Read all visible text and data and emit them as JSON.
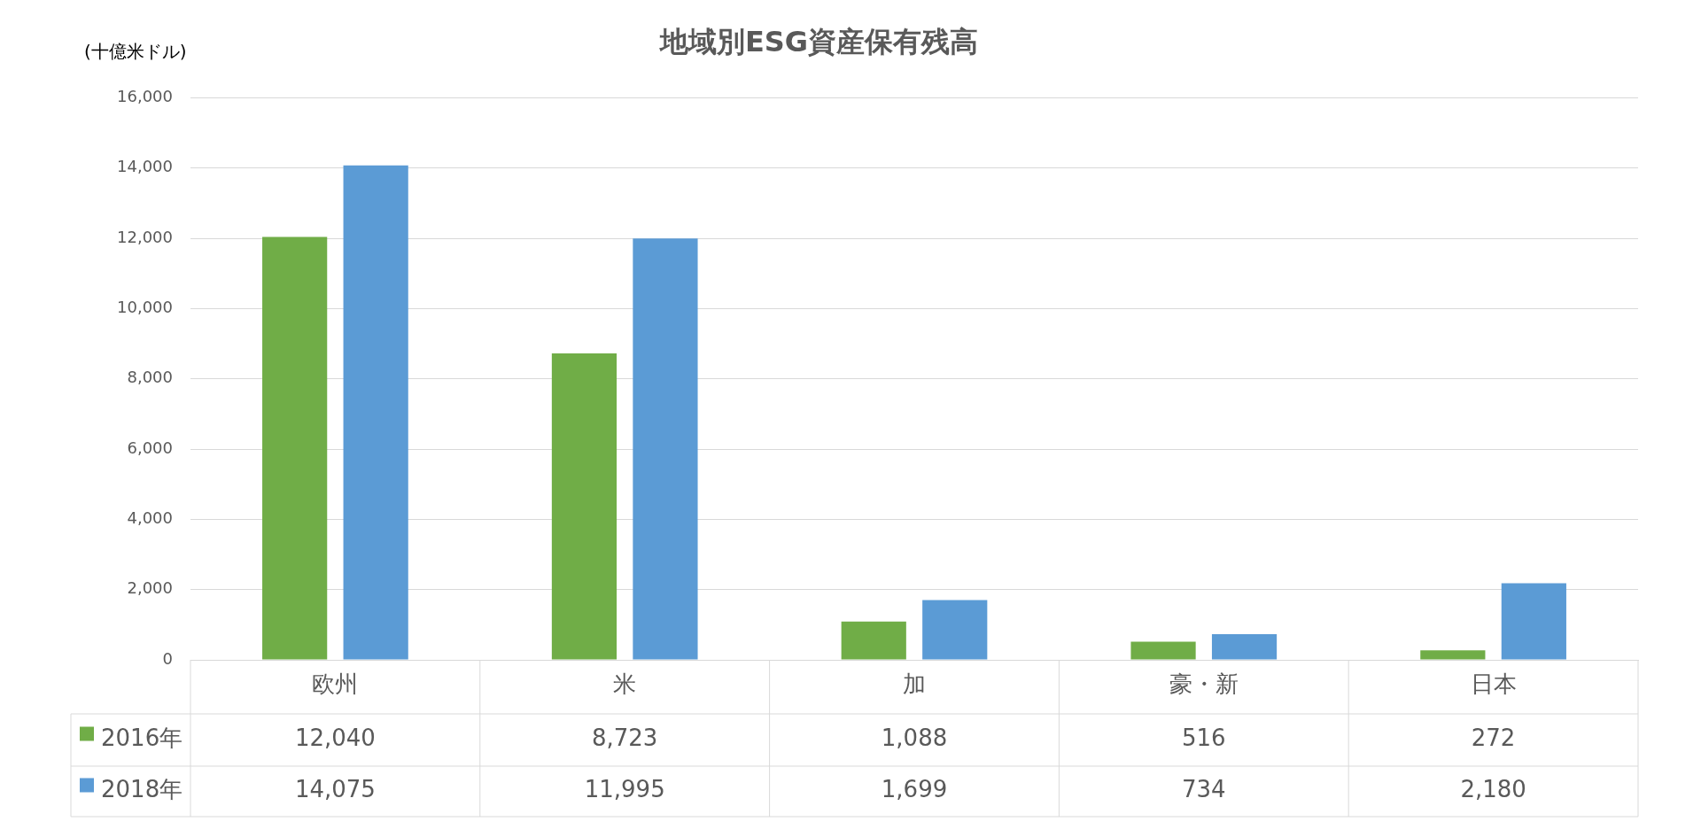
{
  "chart_data": {
    "type": "bar",
    "title": "地域別ESG資産保有残高",
    "ylabel": "(十億米ドル)",
    "categories": [
      "欧州",
      "米",
      "加",
      "豪・新",
      "日本"
    ],
    "series": [
      {
        "name": "2016年",
        "color": "#70ad47",
        "values": [
          12040,
          8723,
          1088,
          516,
          272
        ],
        "value_labels": [
          "12,040",
          "8,723",
          "1,088",
          "516",
          "272"
        ]
      },
      {
        "name": "2018年",
        "color": "#5b9bd5",
        "values": [
          14075,
          11995,
          1699,
          734,
          2180
        ],
        "value_labels": [
          "14,075",
          "11,995",
          "1,699",
          "734",
          "2,180"
        ]
      }
    ],
    "ylim": [
      0,
      16000
    ],
    "yticks": [
      0,
      {
        "value": 2000,
        "label": "2,000"
      },
      {
        "value": 4000,
        "label": "4,000"
      },
      {
        "value": 6000,
        "label": "6,000"
      },
      {
        "value": 8000,
        "label": "8,000"
      },
      {
        "value": 10000,
        "label": "10,000"
      },
      {
        "value": 12000,
        "label": "12,000"
      },
      {
        "value": 14000,
        "label": "14,000"
      },
      {
        "value": 16000,
        "label": "16,000"
      }
    ],
    "grid": "y",
    "legend": "bottom"
  }
}
